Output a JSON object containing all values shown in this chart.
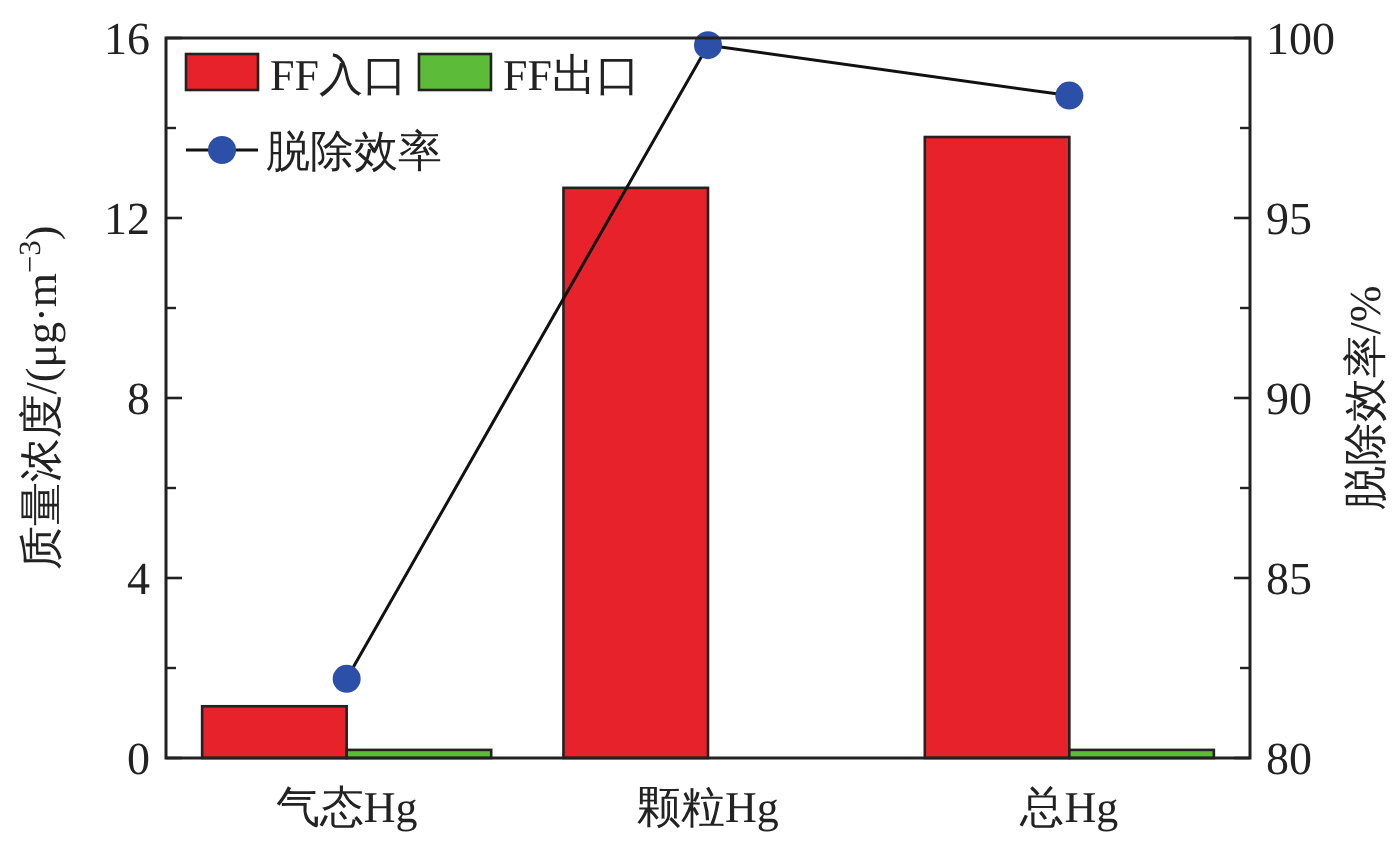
{
  "chart_data": {
    "type": "bar",
    "categories": [
      "气态Hg",
      "颗粒Hg",
      "总Hg"
    ],
    "ylabel": "质量浓度/(μg·m$^{−3}$)",
    "y2label": "脱除效率/%",
    "ylim": [
      0,
      16
    ],
    "yticks": [
      0,
      4,
      8,
      12,
      16
    ],
    "y2lim": [
      80,
      100
    ],
    "y2ticks": [
      80,
      85,
      90,
      95,
      100
    ],
    "legend": "top left",
    "marker": "circle",
    "series": [
      {
        "name": "FF入口",
        "color": "#e8222a",
        "values": [
          1.15,
          12.67,
          13.8
        ]
      },
      {
        "name": "FF出口",
        "color": "#5dbb3a",
        "values": [
          0.18,
          null,
          0.18
        ]
      },
      {
        "name": "脱除效率",
        "type": "line",
        "axis": "y2",
        "color": "#2c4fa8",
        "values": [
          82.2,
          99.8,
          98.4
        ]
      }
    ]
  }
}
